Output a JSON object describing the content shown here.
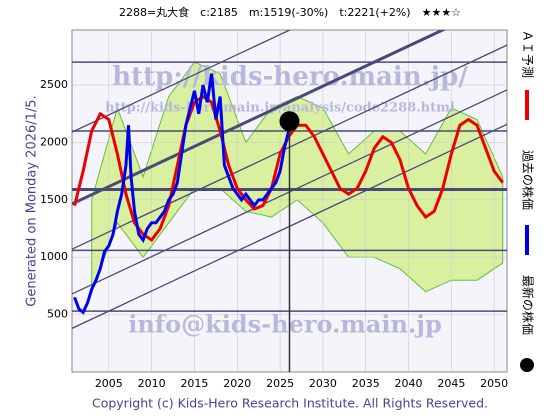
{
  "chart_data": {
    "type": "line",
    "title": "2288=丸大食　c:2185　m:1519(-30%)　t:2221(+2%)　★★★☆",
    "side_label": "Generated on Monday 2026/1/5.",
    "footer": "Copyright (c) Kids-Hero Research Institute. All Rights Reserved.",
    "watermarks": [
      "http://kids-hero.main.jp/",
      "http://kids-hero.main.jp/analysis/code2288.html",
      "info@kids-hero.main.jp"
    ],
    "xlim": [
      2000.7,
      2051.5
    ],
    "ylim": [
      0,
      2980
    ],
    "xticks": [
      2005,
      2010,
      2015,
      2020,
      2025,
      2030,
      2035,
      2040,
      2045,
      2050
    ],
    "yticks": [
      500,
      1000,
      1500,
      2000,
      2500
    ],
    "grid": true,
    "band": {
      "color": "#d8f0a0",
      "x": [
        2003,
        2006,
        2009,
        2012,
        2015,
        2018,
        2021,
        2024,
        2027,
        2030,
        2033,
        2036,
        2039,
        2042,
        2045,
        2048,
        2051
      ],
      "upper": [
        1500,
        2300,
        1700,
        2400,
        2700,
        2600,
        2000,
        2300,
        2400,
        2300,
        1900,
        2100,
        2100,
        1900,
        2300,
        2200,
        1700
      ],
      "lower": [
        700,
        1300,
        1000,
        1300,
        1600,
        1600,
        1400,
        1350,
        1500,
        1300,
        1000,
        1000,
        900,
        700,
        800,
        800,
        950
      ]
    },
    "levels": [
      2700,
      2100,
      1590,
      1060,
      530
    ],
    "level_color": "#4a4a7a",
    "trend_lines": [
      [
        2000.7,
        2090,
        2051.5,
        3868
      ],
      [
        2000.7,
        1465,
        2051.5,
        3243
      ],
      [
        2000.7,
        1070,
        2051.5,
        2848
      ],
      [
        2000.7,
        680,
        2051.5,
        2458
      ],
      [
        2000.7,
        380,
        2051.5,
        2158
      ]
    ],
    "series": [
      {
        "name": "ＡＩ予測",
        "color": "#ee0000",
        "x": [
          2001,
          2002,
          2003,
          2004,
          2005,
          2006,
          2007,
          2008,
          2009,
          2010,
          2011,
          2012,
          2013,
          2014,
          2015,
          2016,
          2017,
          2018,
          2019,
          2020,
          2021,
          2022,
          2023,
          2024,
          2025,
          2026,
          2027,
          2028,
          2029,
          2030,
          2031,
          2032,
          2033,
          2034,
          2035,
          2036,
          2037,
          2038,
          2039,
          2040,
          2041,
          2042,
          2043,
          2044,
          2045,
          2046,
          2047,
          2048,
          2049,
          2050,
          2051
        ],
        "values": [
          1450,
          1750,
          2100,
          2250,
          2200,
          1900,
          1550,
          1300,
          1200,
          1150,
          1250,
          1450,
          1800,
          2150,
          2350,
          2400,
          2350,
          2100,
          1800,
          1600,
          1500,
          1420,
          1450,
          1600,
          1900,
          2050,
          2150,
          2150,
          2050,
          1900,
          1750,
          1600,
          1550,
          1600,
          1750,
          1950,
          2050,
          2000,
          1850,
          1600,
          1450,
          1350,
          1400,
          1600,
          1900,
          2150,
          2200,
          2150,
          1950,
          1750,
          1650
        ]
      },
      {
        "name": "過去の株価",
        "color": "#0000ee",
        "x": [
          2001,
          2001.5,
          2002,
          2002.5,
          2003,
          2003.5,
          2004,
          2004.5,
          2005,
          2005.5,
          2006,
          2006.5,
          2007,
          2007.3,
          2007.6,
          2008,
          2008.5,
          2009,
          2009.5,
          2010,
          2010.5,
          2011,
          2011.5,
          2012,
          2012.5,
          2013,
          2013.5,
          2014,
          2014.5,
          2015,
          2015.5,
          2016,
          2016.5,
          2017,
          2017.5,
          2018,
          2018.5,
          2019,
          2019.5,
          2020,
          2020.5,
          2021,
          2021.5,
          2022,
          2022.5,
          2023,
          2023.5,
          2024,
          2024.5,
          2025,
          2025.5,
          2026
        ],
        "values": [
          650,
          550,
          520,
          600,
          720,
          800,
          900,
          1050,
          1100,
          1200,
          1400,
          1550,
          1800,
          2150,
          1700,
          1400,
          1200,
          1150,
          1250,
          1300,
          1300,
          1350,
          1400,
          1500,
          1550,
          1650,
          1900,
          2150,
          2300,
          2450,
          2250,
          2500,
          2350,
          2600,
          2200,
          2400,
          1800,
          1700,
          1600,
          1550,
          1500,
          1550,
          1500,
          1450,
          1500,
          1500,
          1550,
          1600,
          1650,
          1750,
          1950,
          2100
        ]
      },
      {
        "name": "最新の株価",
        "color": "#000000",
        "x": [
          2026.1
        ],
        "values": [
          2185
        ]
      }
    ]
  }
}
